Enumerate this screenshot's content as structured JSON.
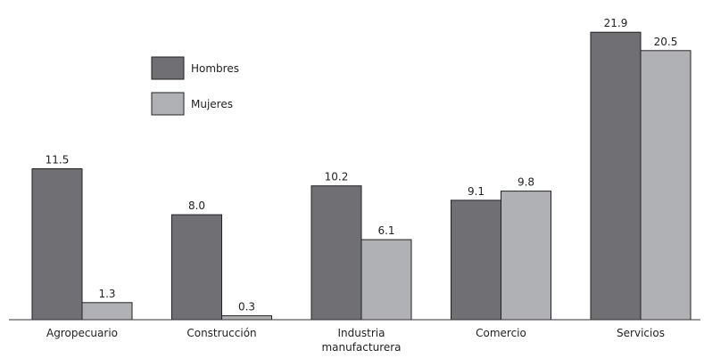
{
  "chart_data": {
    "type": "bar",
    "categories": [
      [
        "Agropecuario"
      ],
      [
        "Construcción"
      ],
      [
        "Industria",
        "manufacturera"
      ],
      [
        "Comercio"
      ],
      [
        "Servicios"
      ]
    ],
    "series": [
      {
        "name": "Hombres",
        "values": [
          11.5,
          8.0,
          10.2,
          9.1,
          21.9
        ],
        "labels": [
          "11.5",
          "8.0",
          "10.2",
          "9.1",
          "21.9"
        ],
        "color": "#707074"
      },
      {
        "name": "Mujeres",
        "values": [
          1.3,
          0.3,
          6.1,
          9.8,
          20.5
        ],
        "labels": [
          "1.3",
          "0.3",
          "6.1",
          "9.8",
          "20.5"
        ],
        "color": "#b0b1b5"
      }
    ],
    "ylim": [
      0,
      23
    ],
    "grid": false,
    "legend_position": "top-left",
    "title": "",
    "xlabel": "",
    "ylabel": ""
  }
}
